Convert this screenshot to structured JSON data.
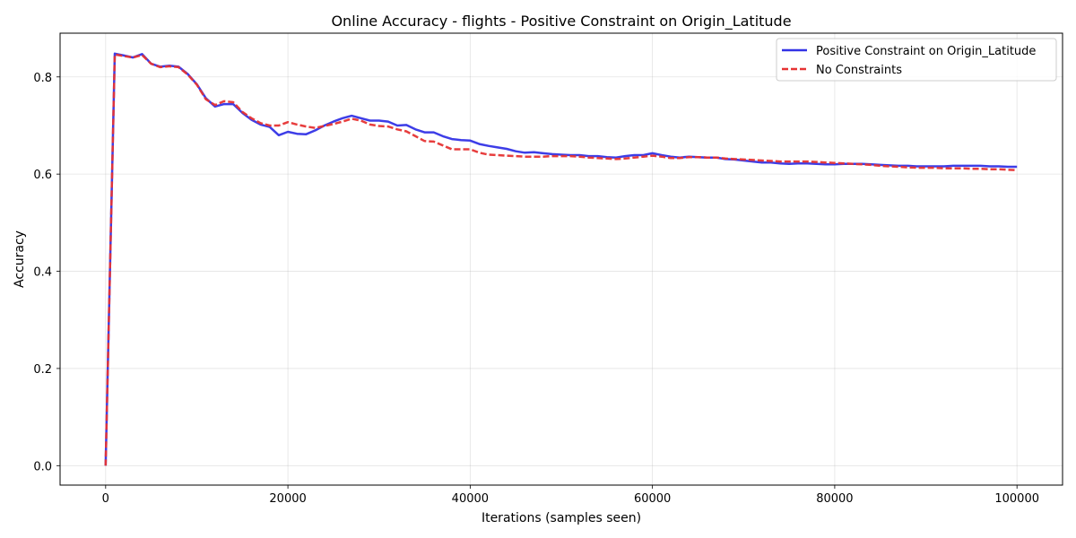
{
  "chart_data": {
    "type": "line",
    "title": "Online Accuracy - flights - Positive Constraint on Origin_Latitude",
    "xlabel": "Iterations (samples seen)",
    "ylabel": "Accuracy",
    "xlim": [
      -5000,
      105000
    ],
    "ylim": [
      -0.04,
      0.89
    ],
    "xticks": [
      0,
      20000,
      40000,
      60000,
      80000,
      100000
    ],
    "xtick_labels": [
      "0",
      "20000",
      "40000",
      "60000",
      "80000",
      "100000"
    ],
    "yticks": [
      0.0,
      0.2,
      0.4,
      0.6,
      0.8
    ],
    "ytick_labels": [
      "0.0",
      "0.2",
      "0.4",
      "0.6",
      "0.8"
    ],
    "grid": true,
    "legend_position": "top-right",
    "x": [
      0,
      1000,
      2000,
      3000,
      4000,
      5000,
      6000,
      7000,
      8000,
      9000,
      10000,
      11000,
      12000,
      13000,
      14000,
      15000,
      16000,
      17000,
      18000,
      19000,
      20000,
      21000,
      22000,
      23000,
      24000,
      25000,
      26000,
      27000,
      28000,
      29000,
      30000,
      31000,
      32000,
      33000,
      34000,
      35000,
      36000,
      37000,
      38000,
      39000,
      40000,
      41000,
      42000,
      43000,
      44000,
      45000,
      46000,
      47000,
      48000,
      49000,
      50000,
      51000,
      52000,
      53000,
      54000,
      55000,
      56000,
      57000,
      58000,
      59000,
      60000,
      61000,
      62000,
      63000,
      64000,
      65000,
      66000,
      67000,
      68000,
      69000,
      70000,
      71000,
      72000,
      73000,
      74000,
      75000,
      76000,
      77000,
      78000,
      79000,
      80000,
      81000,
      82000,
      83000,
      84000,
      85000,
      86000,
      87000,
      88000,
      89000,
      90000,
      91000,
      92000,
      93000,
      94000,
      95000,
      96000,
      97000,
      98000,
      99000,
      100000
    ],
    "series": [
      {
        "name": "Positive Constraint on Origin_Latitude",
        "color": "#3333e6",
        "style": "solid",
        "values": [
          0.0,
          0.848,
          0.844,
          0.84,
          0.847,
          0.827,
          0.821,
          0.823,
          0.821,
          0.806,
          0.785,
          0.756,
          0.739,
          0.744,
          0.744,
          0.726,
          0.712,
          0.702,
          0.697,
          0.68,
          0.687,
          0.683,
          0.682,
          0.69,
          0.7,
          0.708,
          0.715,
          0.72,
          0.715,
          0.71,
          0.71,
          0.708,
          0.7,
          0.701,
          0.692,
          0.686,
          0.686,
          0.678,
          0.672,
          0.67,
          0.669,
          0.662,
          0.658,
          0.655,
          0.652,
          0.647,
          0.644,
          0.645,
          0.643,
          0.641,
          0.64,
          0.639,
          0.639,
          0.637,
          0.637,
          0.635,
          0.634,
          0.637,
          0.639,
          0.639,
          0.643,
          0.639,
          0.636,
          0.634,
          0.636,
          0.635,
          0.634,
          0.634,
          0.631,
          0.63,
          0.628,
          0.626,
          0.624,
          0.624,
          0.622,
          0.621,
          0.622,
          0.622,
          0.621,
          0.62,
          0.62,
          0.621,
          0.621,
          0.621,
          0.62,
          0.619,
          0.618,
          0.617,
          0.617,
          0.616,
          0.616,
          0.616,
          0.616,
          0.617,
          0.617,
          0.617,
          0.617,
          0.616,
          0.616,
          0.615,
          0.615
        ]
      },
      {
        "name": "No Constraints",
        "color": "#e63333",
        "style": "dashed",
        "values": [
          0.0,
          0.846,
          0.843,
          0.84,
          0.845,
          0.827,
          0.82,
          0.822,
          0.82,
          0.805,
          0.784,
          0.754,
          0.742,
          0.75,
          0.748,
          0.728,
          0.715,
          0.705,
          0.7,
          0.7,
          0.707,
          0.702,
          0.698,
          0.695,
          0.699,
          0.703,
          0.708,
          0.714,
          0.71,
          0.702,
          0.699,
          0.698,
          0.692,
          0.688,
          0.678,
          0.668,
          0.667,
          0.659,
          0.651,
          0.651,
          0.651,
          0.644,
          0.64,
          0.639,
          0.638,
          0.637,
          0.636,
          0.636,
          0.636,
          0.637,
          0.637,
          0.637,
          0.636,
          0.634,
          0.633,
          0.632,
          0.631,
          0.632,
          0.634,
          0.636,
          0.638,
          0.636,
          0.633,
          0.633,
          0.635,
          0.635,
          0.634,
          0.634,
          0.632,
          0.631,
          0.63,
          0.629,
          0.628,
          0.627,
          0.626,
          0.626,
          0.626,
          0.626,
          0.625,
          0.624,
          0.623,
          0.622,
          0.621,
          0.62,
          0.619,
          0.617,
          0.616,
          0.615,
          0.614,
          0.613,
          0.613,
          0.613,
          0.612,
          0.612,
          0.612,
          0.611,
          0.611,
          0.61,
          0.61,
          0.609,
          0.608
        ]
      }
    ]
  }
}
